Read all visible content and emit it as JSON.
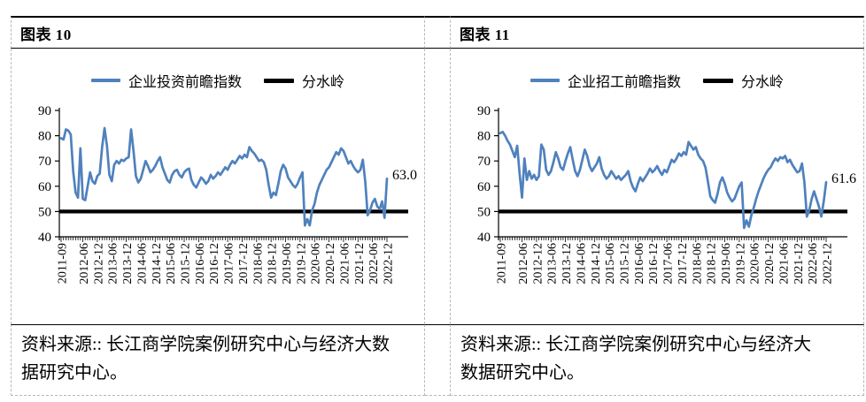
{
  "colors": {
    "series_blue": "#4f81bd",
    "threshold_black": "#000000",
    "border_dashed_gray": "#b8b8b8",
    "text_black": "#000000",
    "background": "#ffffff"
  },
  "figures": [
    {
      "title": "图表 10",
      "legend_series": "企业投资前瞻指数",
      "legend_threshold": "分水岭",
      "end_label": "63.0",
      "source": "资料来源:: 长江商学院案例研究中心与经济大数据研究中心。"
    },
    {
      "title": "图表 11",
      "legend_series": "企业招工前瞻指数",
      "legend_threshold": "分水岭",
      "end_label": "61.6",
      "source": "资料来源:: 长江商学院案例研究中心与经济大数据研究中心。"
    }
  ],
  "chart_data": [
    {
      "type": "line",
      "title": "企业投资前瞻指数",
      "legend": [
        "企业投资前瞻指数",
        "分水岭"
      ],
      "legend_position": "top",
      "grid": false,
      "ylim": [
        40,
        90
      ],
      "y_ticks": [
        90,
        80,
        70,
        60,
        50,
        40
      ],
      "threshold_value": 50,
      "x_start": "2011-09",
      "x_end": "2022-12",
      "x_monthly_points": 136,
      "x_tick_positions": [
        0,
        9,
        15,
        21,
        27,
        33,
        39,
        45,
        51,
        57,
        63,
        69,
        75,
        81,
        87,
        93,
        99,
        105,
        111,
        117,
        123,
        129,
        135
      ],
      "x_tick_labels": [
        "2011-09",
        "2012-06",
        "2012-12",
        "2013-06",
        "2013-12",
        "2014-06",
        "2014-12",
        "2015-06",
        "2015-12",
        "2016-06",
        "2016-12",
        "2017-06",
        "2017-12",
        "2018-06",
        "2018-12",
        "2019-06",
        "2019-12",
        "2020-06",
        "2020-12",
        "2021-06",
        "2021-12",
        "2022-06",
        "2022-12"
      ],
      "end_value": 63.0,
      "end_label": "63.0",
      "series": [
        {
          "name": "企业投资前瞻指数",
          "color": "#4f81bd",
          "values": [
            79,
            78.5,
            82.5,
            82,
            80.5,
            66,
            57.5,
            55.5,
            75,
            55,
            54.5,
            60,
            65.5,
            62,
            61,
            64,
            65,
            75.5,
            83,
            76,
            64.5,
            62,
            68.5,
            70,
            69,
            70.5,
            70,
            71,
            71.5,
            82.5,
            74,
            64,
            61.5,
            63,
            66.5,
            70,
            68,
            65.5,
            66.5,
            68,
            70,
            71.5,
            67.5,
            65,
            62.5,
            61.5,
            64.5,
            66,
            66.5,
            64.5,
            63.5,
            65.5,
            66.5,
            67,
            62.5,
            60.5,
            59.5,
            61.5,
            63.5,
            62.5,
            61,
            62,
            64.5,
            63,
            64,
            65.5,
            64.5,
            66,
            67.5,
            66.5,
            68.5,
            70,
            69,
            70.5,
            72,
            71,
            72.5,
            71.5,
            75.5,
            74,
            73,
            71.5,
            70,
            70.5,
            69.5,
            66.5,
            60.5,
            55.5,
            57.5,
            56.5,
            61,
            66,
            68.5,
            67,
            63.5,
            62,
            60.5,
            59.5,
            61,
            63.5,
            65.5,
            44.5,
            47,
            44.5,
            50.5,
            53,
            57.5,
            60.5,
            62.5,
            64.5,
            66.5,
            67.5,
            69.5,
            71.5,
            73.5,
            72.5,
            75,
            74,
            71.5,
            69,
            70,
            68,
            66.5,
            65.5,
            66.5,
            70.5,
            62,
            48.5,
            50.5,
            53.5,
            55,
            52,
            51,
            54,
            47.5,
            63
          ]
        },
        {
          "name": "分水岭",
          "color": "#000000",
          "constant": 50
        }
      ]
    },
    {
      "type": "line",
      "title": "企业招工前瞻指数",
      "legend": [
        "企业招工前瞻指数",
        "分水岭"
      ],
      "legend_position": "top",
      "grid": false,
      "ylim": [
        40,
        90
      ],
      "y_ticks": [
        90,
        80,
        70,
        60,
        50,
        40
      ],
      "threshold_value": 50,
      "x_start": "2011-09",
      "x_end": "2022-12",
      "x_monthly_points": 136,
      "x_tick_positions": [
        0,
        9,
        15,
        21,
        27,
        33,
        39,
        45,
        51,
        57,
        63,
        69,
        75,
        81,
        87,
        93,
        99,
        105,
        111,
        117,
        123,
        129,
        135
      ],
      "x_tick_labels": [
        "2011-09",
        "2012-06",
        "2012-12",
        "2013-06",
        "2013-12",
        "2014-06",
        "2014-12",
        "2015-06",
        "2015-12",
        "2016-06",
        "2016-12",
        "2017-06",
        "2017-12",
        "2018-06",
        "2018-12",
        "2019-06",
        "2019-12",
        "2020-06",
        "2020-12",
        "2021-06",
        "2021-12",
        "2022-06",
        "2022-12"
      ],
      "end_value": 61.6,
      "end_label": "61.6",
      "series": [
        {
          "name": "企业招工前瞻指数",
          "color": "#4f81bd",
          "values": [
            81,
            81.5,
            80,
            78,
            76.5,
            74,
            71.5,
            76,
            65,
            55.5,
            71,
            62.5,
            66,
            63,
            64.5,
            62.5,
            64,
            76.5,
            74.5,
            66.5,
            64.5,
            66,
            69.5,
            73.5,
            71,
            67.5,
            66.5,
            70,
            73,
            75.5,
            70.5,
            66,
            64,
            66.5,
            70.5,
            74.5,
            72,
            68,
            66,
            67.5,
            69,
            71.5,
            67,
            64.5,
            63,
            64,
            66,
            64.5,
            63,
            64,
            62.5,
            63.5,
            64.5,
            66,
            62,
            59.5,
            58,
            61,
            63.5,
            62,
            63.5,
            65,
            67,
            65.5,
            66.5,
            68,
            66,
            64.5,
            66.5,
            65.5,
            68,
            70.5,
            69.5,
            71,
            73,
            72,
            73.5,
            72.5,
            77.5,
            76,
            74.5,
            75.5,
            72.5,
            71,
            70,
            67.5,
            62,
            56,
            54.5,
            53.5,
            57,
            61.5,
            63.5,
            61,
            57.5,
            55.5,
            54,
            55,
            57.5,
            60,
            61.5,
            43.5,
            46.5,
            44,
            48.5,
            51.5,
            55,
            58,
            60.5,
            63,
            65,
            66.5,
            67.5,
            69.5,
            71,
            70,
            71.5,
            71,
            72,
            69.5,
            70.5,
            68.5,
            67,
            65.5,
            66,
            69,
            61.5,
            48,
            50.5,
            55,
            58,
            55,
            52,
            48,
            54,
            61.6
          ]
        },
        {
          "name": "分水岭",
          "color": "#000000",
          "constant": 50
        }
      ]
    }
  ]
}
